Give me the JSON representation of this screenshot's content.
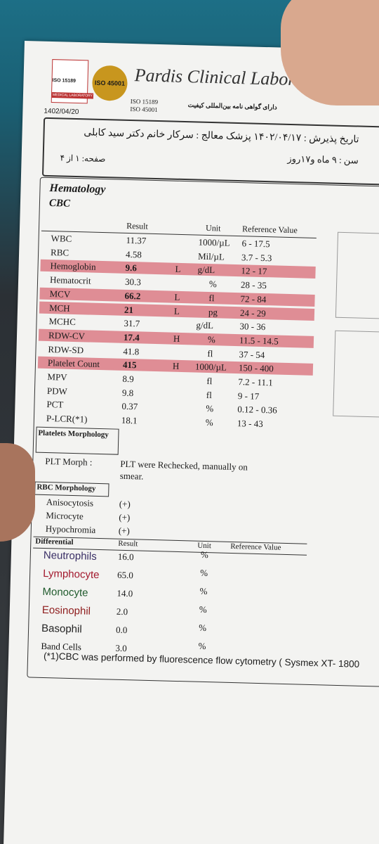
{
  "header": {
    "iso_badge": "ISO 15189",
    "iso_badge_sub": "MEDICAL LABORATORY",
    "gold_badge": "ISO 45001",
    "lab_name": "Pardis Clinical Laboratory",
    "iso_line_1": "ISO 15189",
    "iso_line_2": "ISO 45001",
    "cert_note": "دارای گواهی نامه بین‌المللی کیفیت",
    "date": "1402/04/20"
  },
  "patient": {
    "line_1": "تاریخ پذیرش : ۱۴۰۲/۰۴/۱۷  پزشک معالج : سرکار خانم دکتر سید کابلی",
    "age": "سن : ۹ ماه و۱۷روز",
    "page": "صفحه: ۱ از ۴"
  },
  "section": {
    "title": "Hematology",
    "subtitle": "CBC"
  },
  "cbc": {
    "columns": [
      "Result",
      "Unit",
      "Reference Value"
    ],
    "rows": [
      {
        "name": "WBC",
        "result": "11.37",
        "flag": "",
        "unit": "1000/µL",
        "reference": "6 - 17.5",
        "highlighted": false
      },
      {
        "name": "RBC",
        "result": "4.58",
        "flag": "",
        "unit": "Mil/µL",
        "reference": "3.7 - 5.3",
        "highlighted": false
      },
      {
        "name": "Hemoglobin",
        "result": "9.6",
        "flag": "L",
        "unit": "g/dL",
        "reference": "12 - 17",
        "highlighted": true
      },
      {
        "name": "Hematocrit",
        "result": "30.3",
        "flag": "",
        "unit": "%",
        "reference": "28 - 35",
        "highlighted": false
      },
      {
        "name": "MCV",
        "result": "66.2",
        "flag": "L",
        "unit": "fl",
        "reference": "72 - 84",
        "highlighted": true
      },
      {
        "name": "MCH",
        "result": "21",
        "flag": "L",
        "unit": "pg",
        "reference": "24 - 29",
        "highlighted": true
      },
      {
        "name": "MCHC",
        "result": "31.7",
        "flag": "",
        "unit": "g/dL",
        "reference": "30 - 36",
        "highlighted": false
      },
      {
        "name": "RDW-CV",
        "result": "17.4",
        "flag": "H",
        "unit": "%",
        "reference": "11.5 - 14.5",
        "highlighted": true
      },
      {
        "name": "RDW-SD",
        "result": "41.8",
        "flag": "",
        "unit": "fl",
        "reference": "37 - 54",
        "highlighted": false
      },
      {
        "name": "Platelet Count",
        "result": "415",
        "flag": "H",
        "unit": "1000/µL",
        "reference": "150 - 400",
        "highlighted": true
      },
      {
        "name": "MPV",
        "result": "8.9",
        "flag": "",
        "unit": "fl",
        "reference": "7.2 - 11.1",
        "highlighted": false
      },
      {
        "name": "PDW",
        "result": "9.8",
        "flag": "",
        "unit": "fl",
        "reference": "9 - 17",
        "highlighted": false
      },
      {
        "name": "PCT",
        "result": "0.37",
        "flag": "",
        "unit": "%",
        "reference": "0.12 - 0.36",
        "highlighted": false
      },
      {
        "name": "P-LCR(*1)",
        "result": "18.1",
        "flag": "",
        "unit": "%",
        "reference": "13 - 43",
        "highlighted": false
      }
    ]
  },
  "platelets_morphology": {
    "title": "Platelets Morphology",
    "label": "PLT Morph :",
    "text": "PLT were Rechecked, manually on smear."
  },
  "rbc_morphology": {
    "title": "RBC Morphology",
    "rows": [
      {
        "name": "Anisocytosis",
        "value": "(+)"
      },
      {
        "name": "Microcyte",
        "value": "(+)"
      },
      {
        "name": "Hypochromia",
        "value": "(+)"
      }
    ]
  },
  "differential": {
    "title": "Differential",
    "columns": [
      "Result",
      "Unit",
      "Reference Value"
    ],
    "rows": [
      {
        "name": "Neutrophils",
        "result": "16.0",
        "unit": "%",
        "color": "#3a2f66"
      },
      {
        "name": "Lymphocyte",
        "result": "65.0",
        "unit": "%",
        "color": "#a3192d"
      },
      {
        "name": "Monocyte",
        "result": "14.0",
        "unit": "%",
        "color": "#1f5a2c"
      },
      {
        "name": "Eosinophil",
        "result": "2.0",
        "unit": "%",
        "color": "#8e1c1c"
      },
      {
        "name": "Basophil",
        "result": "0.0",
        "unit": "%",
        "color": "#222222"
      },
      {
        "name": "Band Cells",
        "result": "3.0",
        "unit": "%",
        "color": "#111111"
      }
    ]
  },
  "footnote": "(*1)CBC was performed by fluorescence flow cytometry ( Sysmex XT- 1800"
}
